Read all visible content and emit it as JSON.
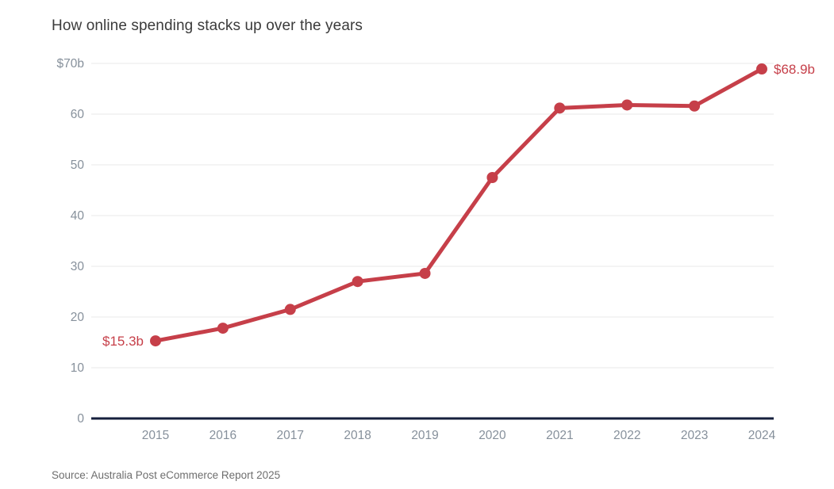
{
  "title": "How online spending stacks up over the years",
  "source": "Source: Australia Post eCommerce Report 2025",
  "colors": {
    "line": "#c63f49",
    "point": "#c63f49",
    "baseline": "#151f3d",
    "grid": "#e9e9e9",
    "y_tick_text": "#86909b",
    "x_tick_text": "#86909b",
    "title_text": "#3b3b3b",
    "source_text": "#6e6e6e",
    "point_label_text": "#c63f49"
  },
  "chart_data": {
    "type": "line",
    "title": "How online spending stacks up over the years",
    "x": [
      2015,
      2016,
      2017,
      2018,
      2019,
      2020,
      2021,
      2022,
      2023,
      2024
    ],
    "values": [
      15.3,
      17.8,
      21.5,
      27.0,
      28.6,
      47.5,
      61.2,
      61.8,
      61.6,
      68.9
    ],
    "unit": "billions AUD",
    "ylim": [
      0,
      70
    ],
    "y_ticks": [
      {
        "value": 70,
        "label": "$70b"
      },
      {
        "value": 60,
        "label": "60"
      },
      {
        "value": 50,
        "label": "50"
      },
      {
        "value": 40,
        "label": "40"
      },
      {
        "value": 30,
        "label": "30"
      },
      {
        "value": 20,
        "label": "20"
      },
      {
        "value": 10,
        "label": "10"
      },
      {
        "value": 0,
        "label": "0"
      }
    ],
    "grid": "horizontal",
    "legend": "none",
    "first_point_label": "$15.3b",
    "last_point_label": "$68.9b"
  }
}
